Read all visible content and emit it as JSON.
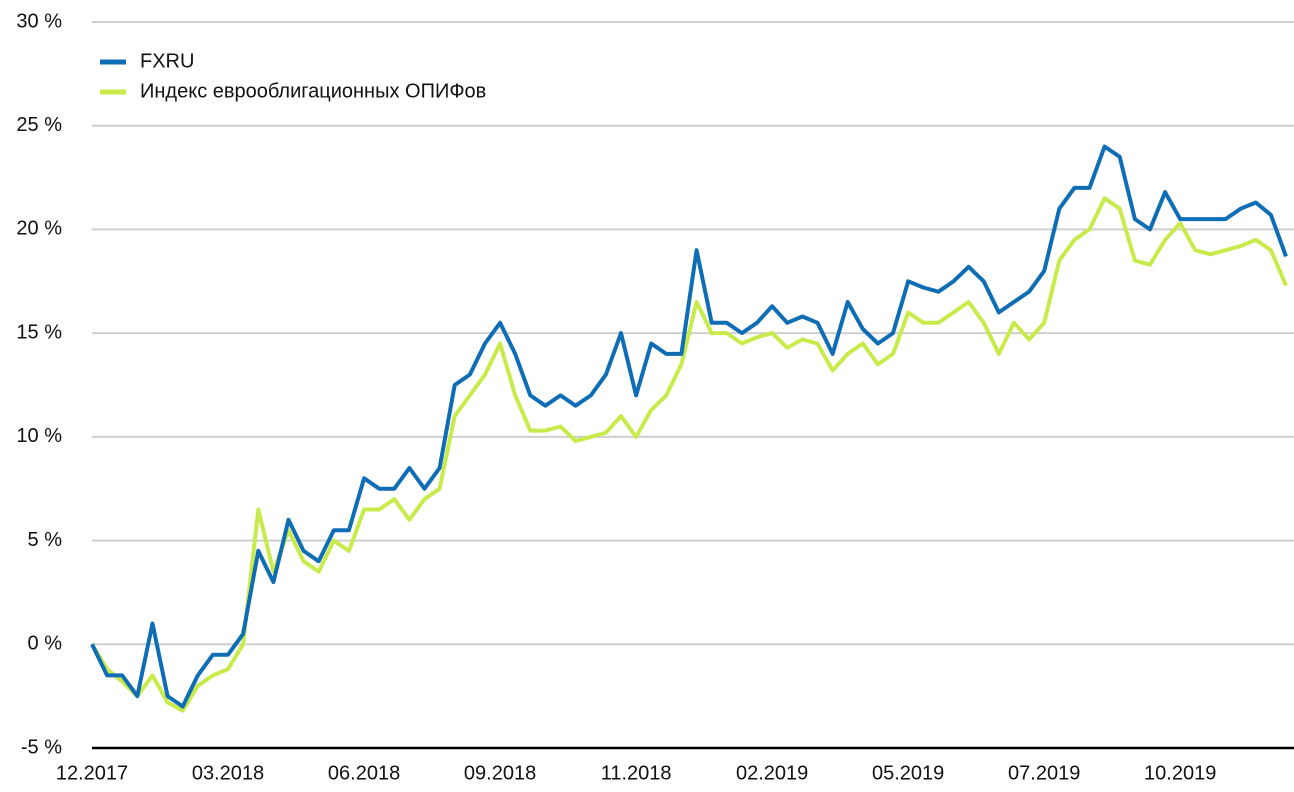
{
  "chart_data": {
    "type": "line",
    "categories": [
      "12.2017",
      null,
      null,
      null,
      null,
      null,
      null,
      null,
      null,
      "03.2018",
      null,
      null,
      null,
      null,
      null,
      null,
      null,
      null,
      "06.2018",
      null,
      null,
      null,
      null,
      null,
      null,
      null,
      null,
      "09.2018",
      null,
      null,
      null,
      null,
      null,
      null,
      null,
      null,
      "11.2018",
      null,
      null,
      null,
      null,
      null,
      null,
      null,
      null,
      "02.2019",
      null,
      null,
      null,
      null,
      null,
      null,
      null,
      null,
      "05.2019",
      null,
      null,
      null,
      null,
      null,
      null,
      null,
      null,
      "07.2019",
      null,
      null,
      null,
      null,
      null,
      null,
      null,
      null,
      "10.2019",
      null,
      null,
      null,
      null,
      null,
      null,
      null
    ],
    "series": [
      {
        "name": "FXRU",
        "color": "#0f6db5",
        "values": [
          0,
          -1.5,
          -1.5,
          -2.5,
          1.0,
          -2.5,
          -3,
          -1.5,
          -0.5,
          -0.5,
          0.5,
          4.5,
          3,
          6,
          4.5,
          4,
          5.5,
          5.5,
          8,
          7.5,
          7.5,
          8.5,
          7.5,
          8.5,
          12.5,
          13,
          14.5,
          15.5,
          14,
          12,
          11.5,
          12,
          11.5,
          12,
          13,
          15,
          12,
          14.5,
          14,
          14,
          19,
          15.5,
          15.5,
          15,
          15.5,
          16.3,
          15.5,
          15.8,
          15.5,
          14,
          16.5,
          15.2,
          14.5,
          15,
          17.5,
          17.2,
          17,
          17.5,
          18.2,
          17.5,
          16,
          16.5,
          17,
          18,
          21,
          22,
          22,
          24,
          23.5,
          20.5,
          20,
          21.8,
          20.5,
          20.5,
          20.5,
          20.5,
          21,
          21.3,
          20.7,
          18.7
        ]
      },
      {
        "name": "Индекс еврооблигационных ОПИФов",
        "color": "#c8eb4b",
        "values": [
          0,
          -1.2,
          -1.8,
          -2.5,
          -1.5,
          -2.8,
          -3.2,
          -2,
          -1.5,
          -1.2,
          0,
          6.5,
          3.5,
          5.5,
          4,
          3.5,
          5,
          4.5,
          6.5,
          6.5,
          7,
          6,
          7,
          7.5,
          11,
          12,
          13,
          14.5,
          12,
          10.3,
          10.3,
          10.5,
          9.8,
          10,
          10.2,
          11,
          10,
          11.3,
          12,
          13.5,
          16.5,
          15,
          15,
          14.5,
          14.8,
          15,
          14.3,
          14.7,
          14.5,
          13.2,
          14,
          14.5,
          13.5,
          14,
          16,
          15.5,
          15.5,
          16,
          16.5,
          15.5,
          14,
          15.5,
          14.7,
          15.5,
          18.5,
          19.5,
          20,
          21.5,
          21,
          18.5,
          18.3,
          19.5,
          20.3,
          19,
          18.8,
          19,
          19.2,
          19.5,
          19,
          17.3
        ]
      }
    ],
    "ylim": [
      -5,
      30
    ],
    "yticks": [
      {
        "value": -5,
        "label": "-5 %"
      },
      {
        "value": 0,
        "label": "0 %"
      },
      {
        "value": 5,
        "label": "5 %"
      },
      {
        "value": 10,
        "label": "10 %"
      },
      {
        "value": 15,
        "label": "15 %"
      },
      {
        "value": 20,
        "label": "20 %"
      },
      {
        "value": 25,
        "label": "25 %"
      },
      {
        "value": 30,
        "label": "30 %"
      }
    ],
    "grid": true,
    "legend": "upper left"
  }
}
